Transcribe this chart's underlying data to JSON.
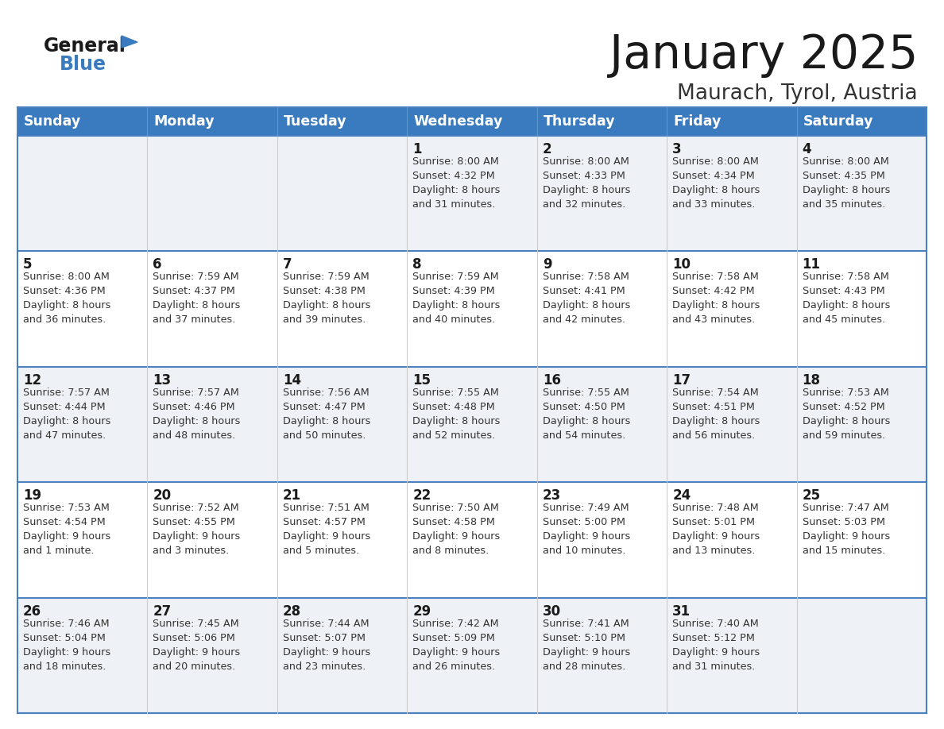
{
  "title": "January 2025",
  "subtitle": "Maurach, Tyrol, Austria",
  "header_bg": "#3a7abf",
  "header_text_color": "#ffffff",
  "cell_bg_light": "#eef1f5",
  "cell_bg_white": "#ffffff",
  "border_color": "#3a7abf",
  "row_separator_color": "#4a7fc0",
  "col_separator_color": "#cccccc",
  "day_headers": [
    "Sunday",
    "Monday",
    "Tuesday",
    "Wednesday",
    "Thursday",
    "Friday",
    "Saturday"
  ],
  "title_color": "#1a1a1a",
  "subtitle_color": "#333333",
  "day_num_color": "#1a1a1a",
  "cell_text_color": "#333333",
  "logo_general_color": "#1a1a1a",
  "logo_blue_color": "#3a7abf",
  "logo_triangle_color": "#3a7abf",
  "calendar": [
    [
      {
        "day": "",
        "info": ""
      },
      {
        "day": "",
        "info": ""
      },
      {
        "day": "",
        "info": ""
      },
      {
        "day": "1",
        "info": "Sunrise: 8:00 AM\nSunset: 4:32 PM\nDaylight: 8 hours\nand 31 minutes."
      },
      {
        "day": "2",
        "info": "Sunrise: 8:00 AM\nSunset: 4:33 PM\nDaylight: 8 hours\nand 32 minutes."
      },
      {
        "day": "3",
        "info": "Sunrise: 8:00 AM\nSunset: 4:34 PM\nDaylight: 8 hours\nand 33 minutes."
      },
      {
        "day": "4",
        "info": "Sunrise: 8:00 AM\nSunset: 4:35 PM\nDaylight: 8 hours\nand 35 minutes."
      }
    ],
    [
      {
        "day": "5",
        "info": "Sunrise: 8:00 AM\nSunset: 4:36 PM\nDaylight: 8 hours\nand 36 minutes."
      },
      {
        "day": "6",
        "info": "Sunrise: 7:59 AM\nSunset: 4:37 PM\nDaylight: 8 hours\nand 37 minutes."
      },
      {
        "day": "7",
        "info": "Sunrise: 7:59 AM\nSunset: 4:38 PM\nDaylight: 8 hours\nand 39 minutes."
      },
      {
        "day": "8",
        "info": "Sunrise: 7:59 AM\nSunset: 4:39 PM\nDaylight: 8 hours\nand 40 minutes."
      },
      {
        "day": "9",
        "info": "Sunrise: 7:58 AM\nSunset: 4:41 PM\nDaylight: 8 hours\nand 42 minutes."
      },
      {
        "day": "10",
        "info": "Sunrise: 7:58 AM\nSunset: 4:42 PM\nDaylight: 8 hours\nand 43 minutes."
      },
      {
        "day": "11",
        "info": "Sunrise: 7:58 AM\nSunset: 4:43 PM\nDaylight: 8 hours\nand 45 minutes."
      }
    ],
    [
      {
        "day": "12",
        "info": "Sunrise: 7:57 AM\nSunset: 4:44 PM\nDaylight: 8 hours\nand 47 minutes."
      },
      {
        "day": "13",
        "info": "Sunrise: 7:57 AM\nSunset: 4:46 PM\nDaylight: 8 hours\nand 48 minutes."
      },
      {
        "day": "14",
        "info": "Sunrise: 7:56 AM\nSunset: 4:47 PM\nDaylight: 8 hours\nand 50 minutes."
      },
      {
        "day": "15",
        "info": "Sunrise: 7:55 AM\nSunset: 4:48 PM\nDaylight: 8 hours\nand 52 minutes."
      },
      {
        "day": "16",
        "info": "Sunrise: 7:55 AM\nSunset: 4:50 PM\nDaylight: 8 hours\nand 54 minutes."
      },
      {
        "day": "17",
        "info": "Sunrise: 7:54 AM\nSunset: 4:51 PM\nDaylight: 8 hours\nand 56 minutes."
      },
      {
        "day": "18",
        "info": "Sunrise: 7:53 AM\nSunset: 4:52 PM\nDaylight: 8 hours\nand 59 minutes."
      }
    ],
    [
      {
        "day": "19",
        "info": "Sunrise: 7:53 AM\nSunset: 4:54 PM\nDaylight: 9 hours\nand 1 minute."
      },
      {
        "day": "20",
        "info": "Sunrise: 7:52 AM\nSunset: 4:55 PM\nDaylight: 9 hours\nand 3 minutes."
      },
      {
        "day": "21",
        "info": "Sunrise: 7:51 AM\nSunset: 4:57 PM\nDaylight: 9 hours\nand 5 minutes."
      },
      {
        "day": "22",
        "info": "Sunrise: 7:50 AM\nSunset: 4:58 PM\nDaylight: 9 hours\nand 8 minutes."
      },
      {
        "day": "23",
        "info": "Sunrise: 7:49 AM\nSunset: 5:00 PM\nDaylight: 9 hours\nand 10 minutes."
      },
      {
        "day": "24",
        "info": "Sunrise: 7:48 AM\nSunset: 5:01 PM\nDaylight: 9 hours\nand 13 minutes."
      },
      {
        "day": "25",
        "info": "Sunrise: 7:47 AM\nSunset: 5:03 PM\nDaylight: 9 hours\nand 15 minutes."
      }
    ],
    [
      {
        "day": "26",
        "info": "Sunrise: 7:46 AM\nSunset: 5:04 PM\nDaylight: 9 hours\nand 18 minutes."
      },
      {
        "day": "27",
        "info": "Sunrise: 7:45 AM\nSunset: 5:06 PM\nDaylight: 9 hours\nand 20 minutes."
      },
      {
        "day": "28",
        "info": "Sunrise: 7:44 AM\nSunset: 5:07 PM\nDaylight: 9 hours\nand 23 minutes."
      },
      {
        "day": "29",
        "info": "Sunrise: 7:42 AM\nSunset: 5:09 PM\nDaylight: 9 hours\nand 26 minutes."
      },
      {
        "day": "30",
        "info": "Sunrise: 7:41 AM\nSunset: 5:10 PM\nDaylight: 9 hours\nand 28 minutes."
      },
      {
        "day": "31",
        "info": "Sunrise: 7:40 AM\nSunset: 5:12 PM\nDaylight: 9 hours\nand 31 minutes."
      },
      {
        "day": "",
        "info": ""
      }
    ]
  ]
}
